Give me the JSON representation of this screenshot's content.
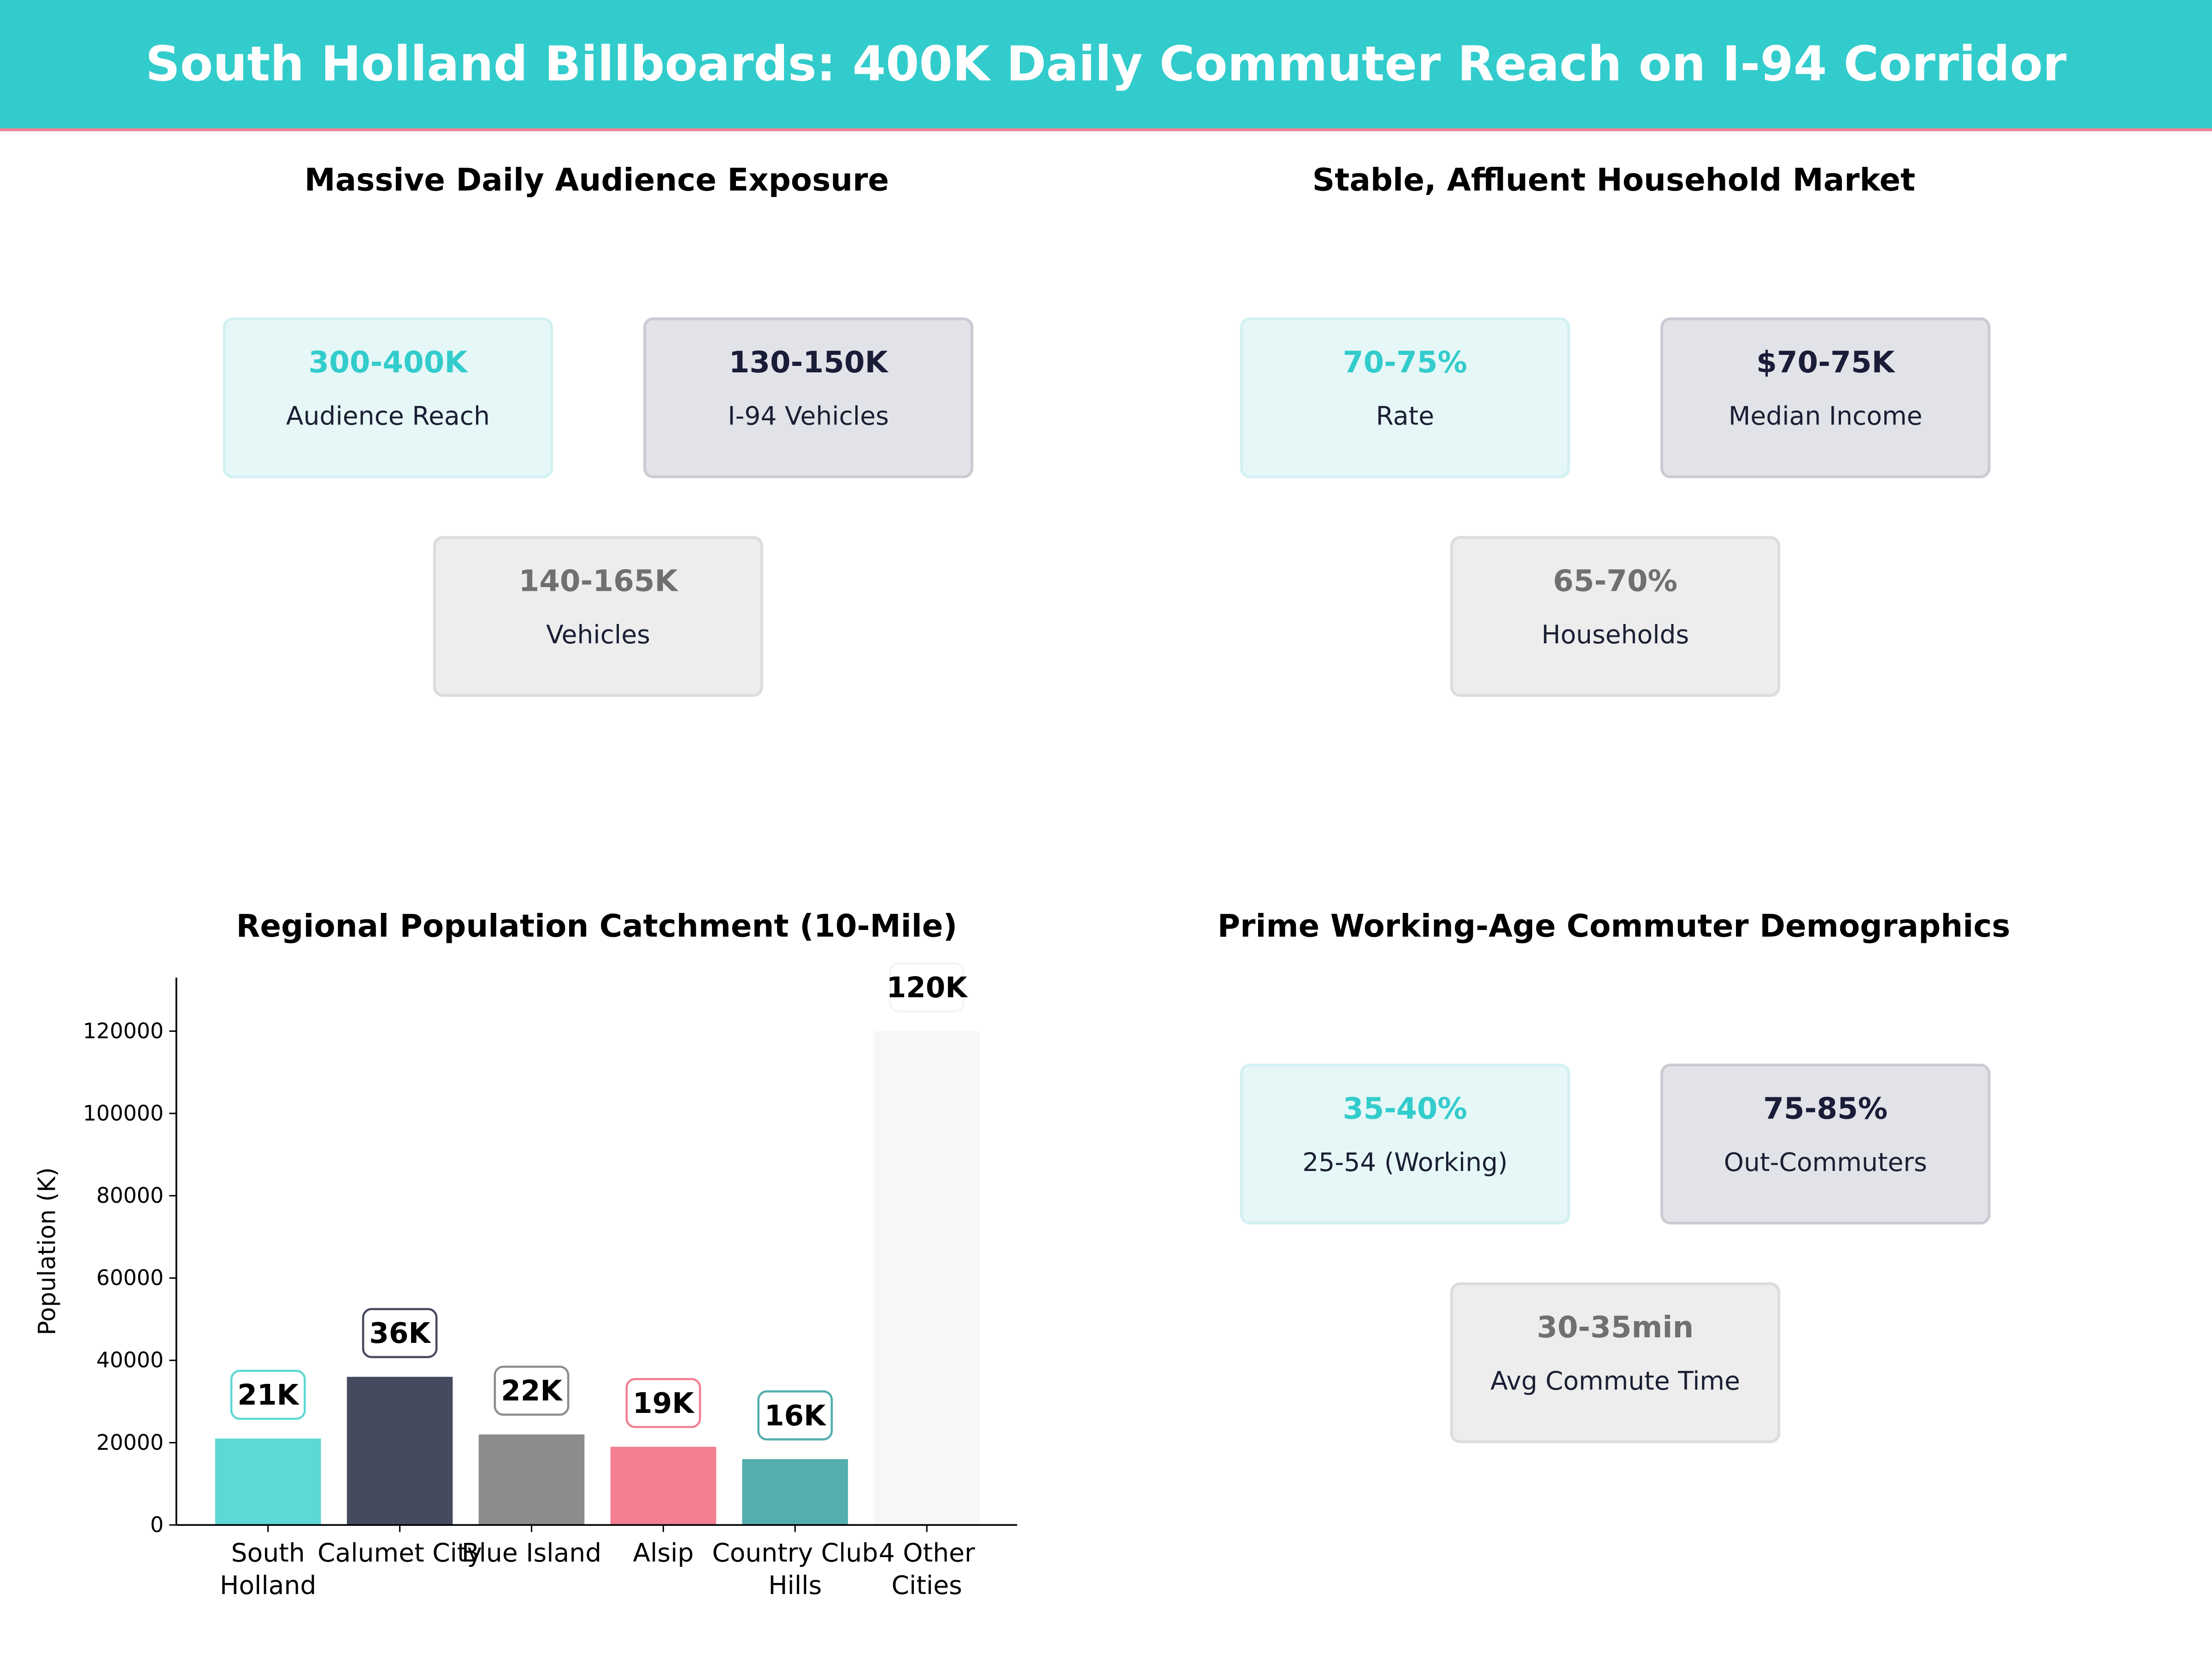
{
  "header": {
    "title": "South Holland Billboards: 400K Daily Commuter Reach on I-94 Corridor",
    "accent": "#33CCCC",
    "line_color": "#F47F92"
  },
  "panels": [
    {
      "title": "Massive Daily Audience Exposure",
      "cards": [
        {
          "value": "300-400K",
          "label": "Audience Reach"
        },
        {
          "value": "130-150K",
          "label": "I-94  Vehicles"
        },
        {
          "value": "140-165K",
          "label": "Vehicles"
        }
      ]
    },
    {
      "title": "Stable, Affluent Household Market",
      "cards": [
        {
          "value": "70-75%",
          "label": "Rate"
        },
        {
          "value": "$70-75K",
          "label": "Median Income"
        },
        {
          "value": "65-70%",
          "label": "Households"
        }
      ]
    },
    {
      "title": "Prime Working-Age Commuter Demographics",
      "cards": [
        {
          "value": "35-40%",
          "label": "25-54 (Working)"
        },
        {
          "value": "75-85%",
          "label": "Out-Commuters"
        },
        {
          "value": "30-35min",
          "label": "Avg Commute Time"
        }
      ]
    }
  ],
  "chart_data": {
    "type": "bar",
    "title": "Regional Population Catchment (10-Mile)",
    "xlabel": "",
    "ylabel": "Population (K)",
    "categories": [
      "South\nHolland",
      "Calumet City",
      "Blue Island",
      "Alsip",
      "Country Club\nHills",
      "4 Other\nCities"
    ],
    "values": [
      21000,
      36000,
      22000,
      19000,
      16000,
      120000
    ],
    "data_labels": [
      "21K",
      "36K",
      "22K",
      "19K",
      "16K",
      "120K"
    ],
    "colors": [
      "#5ED8D6",
      "#464A5E",
      "#8C8C8C",
      "#F47F92",
      "#55ADAD",
      "#F7F7F7"
    ],
    "label_borders": [
      "#5ED8D6",
      "#464A5E",
      "#8C8C8C",
      "#F47F92",
      "#55ADAD",
      "#F4F4F4"
    ],
    "yticks": [
      0,
      20000,
      40000,
      60000,
      80000,
      100000,
      120000
    ],
    "ylim": [
      0,
      133000
    ],
    "grid": false
  }
}
